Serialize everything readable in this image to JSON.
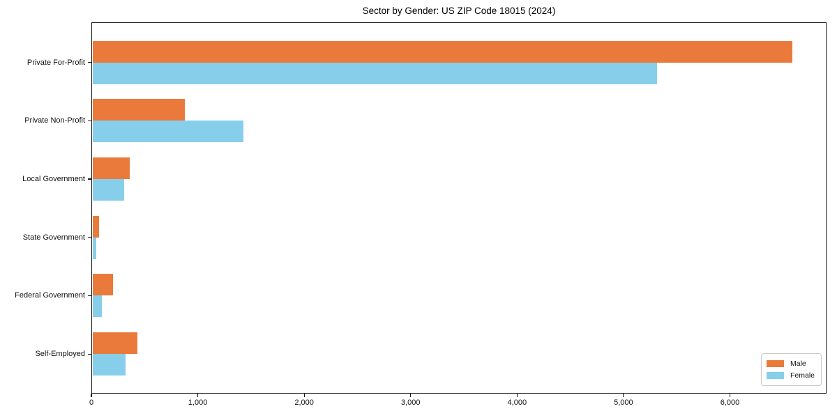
{
  "title": "Sector by Gender: US ZIP Code 18015 (2024)",
  "chart_data": {
    "type": "bar",
    "orientation": "horizontal",
    "title": "Sector by Gender: US ZIP Code 18015 (2024)",
    "categories": [
      "Private For-Profit",
      "Private Non-Profit",
      "Local Government",
      "State Government",
      "Federal Government",
      "Self-Employed"
    ],
    "series": [
      {
        "name": "Male",
        "color": "#EA7A3B",
        "values": [
          6585,
          880,
          360,
          74,
          202,
          434
        ]
      },
      {
        "name": "Female",
        "color": "#87CEEB",
        "values": [
          5315,
          1432,
          307,
          47,
          100,
          324
        ]
      }
    ],
    "xlabel": "",
    "ylabel": "",
    "xlim": [
      0,
      6908
    ],
    "xticks": [
      0,
      1000,
      2000,
      3000,
      4000,
      5000,
      6000
    ],
    "xtick_labels": [
      "0",
      "1,000",
      "2,000",
      "3,000",
      "4,000",
      "5,000",
      "6,000"
    ],
    "grid": false,
    "legend_position": "lower right",
    "bar_colors": {
      "male": "#EA7A3B",
      "female": "#87CEEB"
    }
  }
}
